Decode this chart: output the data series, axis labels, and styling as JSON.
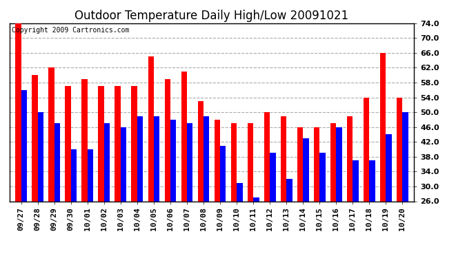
{
  "title": "Outdoor Temperature Daily High/Low 20091021",
  "copyright": "Copyright 2009 Cartronics.com",
  "categories": [
    "09/27",
    "09/28",
    "09/29",
    "09/30",
    "10/01",
    "10/02",
    "10/03",
    "10/04",
    "10/05",
    "10/06",
    "10/07",
    "10/08",
    "10/09",
    "10/10",
    "10/11",
    "10/12",
    "10/13",
    "10/14",
    "10/15",
    "10/16",
    "10/17",
    "10/18",
    "10/19",
    "10/20"
  ],
  "highs": [
    76,
    60,
    62,
    57,
    59,
    57,
    57,
    57,
    65,
    59,
    61,
    53,
    48,
    47,
    47,
    50,
    49,
    46,
    46,
    47,
    49,
    54,
    66,
    54
  ],
  "lows": [
    56,
    50,
    47,
    40,
    40,
    47,
    46,
    49,
    49,
    48,
    47,
    49,
    41,
    31,
    27,
    39,
    32,
    43,
    39,
    46,
    37,
    37,
    44,
    50
  ],
  "high_color": "#ff0000",
  "low_color": "#0000ff",
  "bg_color": "#ffffff",
  "grid_color": "#aaaaaa",
  "ylim": [
    26,
    74
  ],
  "yticks": [
    26.0,
    30.0,
    34.0,
    38.0,
    42.0,
    46.0,
    50.0,
    54.0,
    58.0,
    62.0,
    66.0,
    70.0,
    74.0
  ],
  "title_fontsize": 12,
  "copyright_fontsize": 7,
  "tick_fontsize": 8,
  "bar_width": 0.35
}
